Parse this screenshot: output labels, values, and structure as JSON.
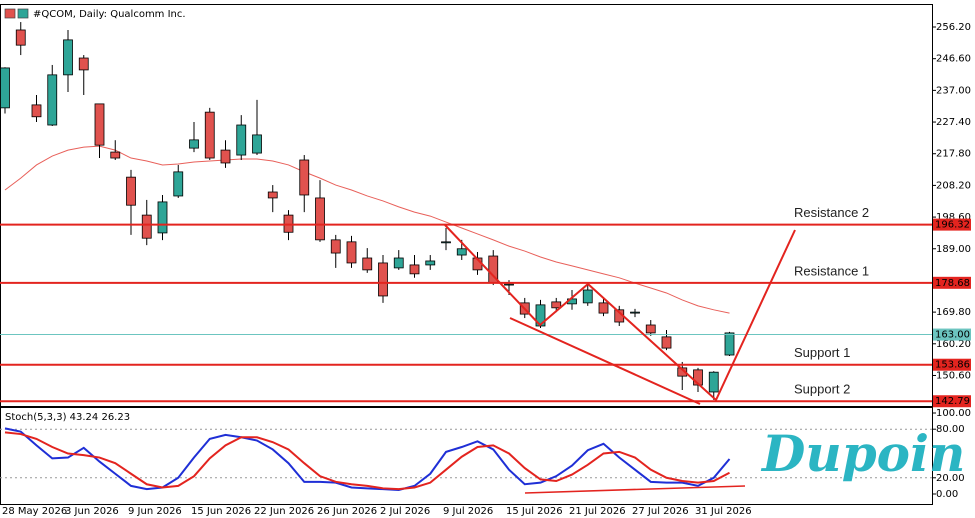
{
  "chart_data": [
    {
      "type": "candlestick",
      "title": "#QCOM, Daily:  Qualcomm Inc.",
      "categories": [
        "28 May 2026",
        null,
        null,
        null,
        "3 Jun 2026",
        null,
        null,
        null,
        "9 Jun 2026",
        null,
        null,
        null,
        "15 Jun 2026",
        null,
        null,
        null,
        "22 Jun 2026",
        null,
        null,
        null,
        "26 Jun 2026",
        null,
        null,
        null,
        "2 Jul 2026",
        null,
        null,
        null,
        "9 Jul 2026",
        null,
        null,
        null,
        "15 Jul 2026",
        null,
        null,
        null,
        "21 Jul 2026",
        null,
        null,
        null,
        "27 Jul 2026",
        null,
        null,
        null,
        "31 Jul 2026",
        null,
        null
      ],
      "open": [
        231.7,
        255.3,
        232.6,
        226.5,
        241.7,
        246.8,
        232.9,
        218.3,
        210.7,
        199.2,
        193.8,
        205.0,
        219.5,
        230.4,
        218.9,
        217.4,
        218.0,
        206.2,
        199.2,
        215.9,
        204.4,
        191.7,
        191.1,
        186.2,
        184.7,
        183.2,
        184.1,
        184.1,
        191.1,
        187.1,
        186.2,
        186.8,
        178.3,
        172.6,
        165.6,
        172.9,
        172.3,
        172.6,
        172.6,
        170.5,
        169.8,
        165.9,
        162.3,
        152.9,
        152.3,
        145.6,
        156.8
      ],
      "high": [
        244.0,
        257.7,
        235.6,
        244.7,
        255.3,
        247.7,
        232.9,
        221.9,
        212.9,
        203.8,
        205.3,
        214.4,
        227.4,
        231.7,
        221.9,
        229.5,
        234.1,
        208.3,
        200.7,
        217.4,
        209.8,
        193.2,
        192.9,
        189.2,
        187.1,
        188.6,
        187.1,
        187.1,
        195.3,
        191.7,
        188.0,
        188.6,
        179.5,
        174.1,
        173.5,
        174.1,
        176.5,
        178.6,
        174.1,
        171.7,
        170.8,
        167.4,
        164.4,
        154.7,
        152.9,
        151.9,
        163.8
      ],
      "low": [
        230.0,
        247.7,
        227.4,
        226.2,
        236.5,
        235.6,
        216.5,
        215.9,
        193.2,
        190.1,
        191.6,
        204.4,
        218.3,
        215.9,
        213.5,
        215.9,
        217.4,
        200.1,
        191.6,
        200.1,
        191.1,
        183.2,
        183.2,
        181.7,
        172.6,
        182.6,
        180.2,
        182.6,
        188.6,
        185.6,
        181.1,
        178.0,
        175.0,
        168.0,
        165.0,
        169.8,
        170.5,
        171.7,
        168.6,
        165.6,
        168.3,
        162.6,
        158.3,
        146.2,
        145.6,
        143.2,
        156.5
      ],
      "close": [
        243.8,
        250.7,
        229.0,
        241.7,
        252.3,
        243.2,
        220.4,
        216.5,
        202.2,
        192.2,
        203.2,
        212.3,
        222.0,
        216.5,
        215.0,
        226.5,
        223.5,
        204.4,
        194.0,
        205.3,
        191.7,
        187.7,
        184.7,
        182.6,
        174.7,
        186.2,
        181.4,
        185.3,
        191.1,
        189.0,
        182.6,
        178.6,
        178.3,
        169.2,
        172.0,
        171.1,
        173.8,
        176.5,
        169.5,
        166.8,
        169.8,
        163.5,
        158.9,
        150.4,
        147.7,
        151.6,
        163.5
      ],
      "up_color": "#2ea597",
      "down_color": "#e0524e",
      "moving_average": {
        "color": "#e8605a",
        "values": [
          206.8,
          210.4,
          214.4,
          217.1,
          218.9,
          219.8,
          220.1,
          218.9,
          216.5,
          215.6,
          214.4,
          214.7,
          215.3,
          215.6,
          215.9,
          216.2,
          216.2,
          215.6,
          214.4,
          212.3,
          210.4,
          208.3,
          206.8,
          205.0,
          203.5,
          201.7,
          200.1,
          198.9,
          197.1,
          195.3,
          193.5,
          191.7,
          189.8,
          188.3,
          186.5,
          185.0,
          183.8,
          182.6,
          181.4,
          180.2,
          178.6,
          177.1,
          175.6,
          173.5,
          171.7,
          170.5,
          169.5
        ]
      },
      "ylim": [
        141.35,
        262.87
      ],
      "yticks": [
        {
          "value": 256.2,
          "label": "256.20"
        },
        {
          "value": 246.6,
          "label": "246.60"
        },
        {
          "value": 237,
          "label": "237.00"
        },
        {
          "value": 227.4,
          "label": "227.40"
        },
        {
          "value": 217.8,
          "label": "217.80"
        },
        {
          "value": 208.2,
          "label": "208.20"
        },
        {
          "value": 198.6,
          "label": "198.60"
        },
        {
          "value": 189,
          "label": "189.00"
        },
        {
          "value": 169.8,
          "label": "169.80"
        },
        {
          "value": 160.2,
          "label": "160.20"
        },
        {
          "value": 150.6,
          "label": "150.60"
        }
      ],
      "levels": [
        {
          "value": 196.32,
          "label": "196.32",
          "name": "Resistance 2",
          "color": "#e3241f"
        },
        {
          "value": 178.68,
          "label": "178.68",
          "name": "Resistance 1",
          "color": "#e3241f"
        },
        {
          "value": 163,
          "label": "163.00",
          "color": "#6cc5c0"
        },
        {
          "value": 153.86,
          "label": "153.86",
          "name": "Support 1",
          "color": "#e3241f"
        },
        {
          "value": 142.79,
          "label": "142.79",
          "name": "Support 2",
          "color": "#e3241f"
        }
      ]
    },
    {
      "type": "line",
      "title": "Stoch(5,3,3) 43.24 26.23",
      "series": [
        {
          "color": "#1f2fd6",
          "values": [
            81,
            77,
            60,
            44,
            45,
            57,
            40,
            25,
            10,
            6,
            8,
            20,
            45,
            68,
            73,
            70,
            66,
            55,
            38,
            15,
            15,
            14,
            8,
            7,
            6,
            5,
            10,
            25,
            52,
            58,
            65,
            55,
            30,
            12,
            14,
            22,
            35,
            54,
            62,
            45,
            30,
            15,
            14,
            14,
            10,
            20,
            43.24
          ]
        },
        {
          "color": "#e3241f",
          "values": [
            76,
            74,
            68,
            58,
            50,
            48,
            45,
            38,
            25,
            12,
            8,
            10,
            22,
            44,
            60,
            70,
            70,
            64,
            55,
            38,
            22,
            15,
            12,
            10,
            7,
            6,
            8,
            14,
            30,
            46,
            58,
            60,
            50,
            32,
            18,
            16,
            24,
            36,
            50,
            52,
            45,
            30,
            20,
            16,
            14,
            16,
            26.23
          ]
        }
      ],
      "ylim": [
        -13.6,
        107.4
      ],
      "yticks": [
        {
          "value": 100,
          "label": "100.00"
        },
        {
          "value": 80,
          "label": "80.00"
        },
        {
          "value": 20,
          "label": "20.00"
        },
        {
          "value": 0,
          "label": "0.00"
        }
      ],
      "levels": [
        80,
        20
      ]
    }
  ],
  "logo": "Dupoin"
}
